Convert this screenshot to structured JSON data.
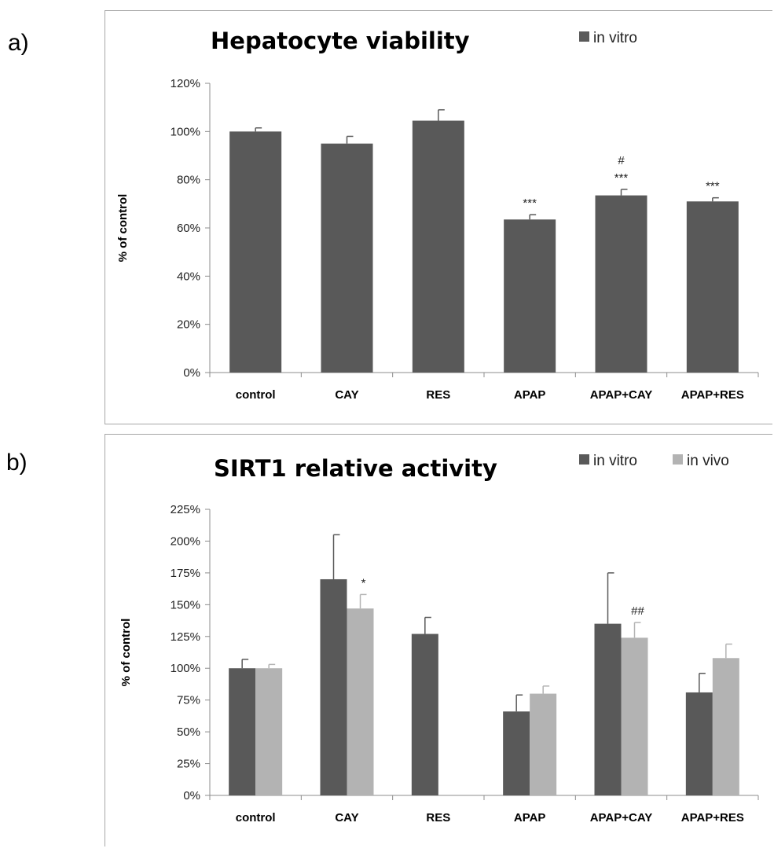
{
  "panel_labels": [
    "a)",
    "b)"
  ],
  "chart_data": [
    {
      "type": "bar",
      "title": "Hepatocyte viability",
      "ylabel": "% of control",
      "xlabel": "",
      "categories": [
        "control",
        "CAY",
        "RES",
        "APAP",
        "APAP+CAY",
        "APAP+RES"
      ],
      "yticks": [
        "0%",
        "20%",
        "40%",
        "60%",
        "80%",
        "100%",
        "120%"
      ],
      "ylim": [
        0,
        120
      ],
      "legend_position": "top-right",
      "series": [
        {
          "name": "in vitro",
          "color": "#595959",
          "values": [
            100,
            95,
            104.5,
            63.5,
            73.5,
            71
          ],
          "errors": [
            1.5,
            3,
            4.5,
            2,
            2.5,
            1.5
          ]
        }
      ],
      "annotations": [
        {
          "category": "APAP",
          "series": 0,
          "lines": [
            "***"
          ]
        },
        {
          "category": "APAP+CAY",
          "series": 0,
          "lines": [
            "#",
            "***"
          ]
        },
        {
          "category": "APAP+RES",
          "series": 0,
          "lines": [
            "***"
          ]
        }
      ]
    },
    {
      "type": "bar",
      "title": "SIRT1 relative activity",
      "ylabel": "% of control",
      "xlabel": "",
      "categories": [
        "control",
        "CAY",
        "RES",
        "APAP",
        "APAP+CAY",
        "APAP+RES"
      ],
      "yticks": [
        "0%",
        "25%",
        "50%",
        "75%",
        "100%",
        "125%",
        "150%",
        "175%",
        "200%",
        "225%"
      ],
      "ylim": [
        0,
        225
      ],
      "legend_position": "top-right",
      "series": [
        {
          "name": "in vitro",
          "color": "#595959",
          "values": [
            100,
            170,
            127,
            66,
            135,
            81
          ],
          "errors": [
            7,
            35,
            13,
            13,
            40,
            15
          ]
        },
        {
          "name": "in vivo",
          "color": "#b3b3b3",
          "values": [
            100,
            147,
            null,
            80,
            124,
            108
          ],
          "errors": [
            3,
            11,
            null,
            6,
            12,
            11
          ]
        }
      ],
      "annotations": [
        {
          "category": "CAY",
          "series": 1,
          "lines": [
            "*"
          ]
        },
        {
          "category": "APAP+CAY",
          "series": 1,
          "lines": [
            "##"
          ]
        }
      ]
    }
  ]
}
